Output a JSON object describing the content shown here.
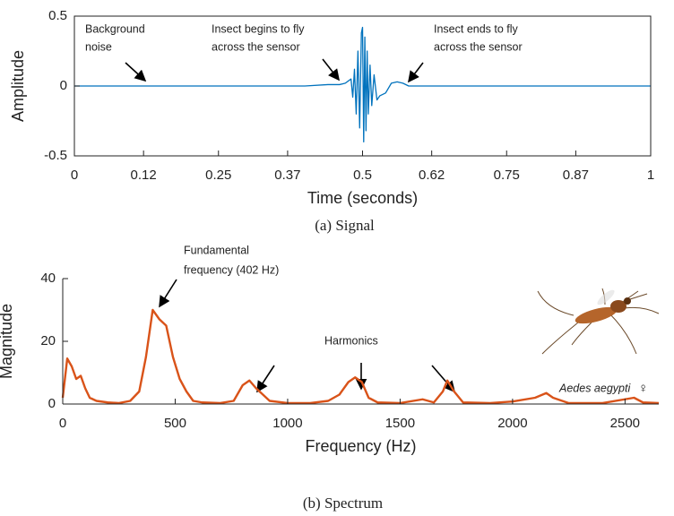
{
  "chart_data": [
    {
      "type": "line",
      "caption": "(a) Signal",
      "xlabel": "Time (seconds)",
      "ylabel": "Amplitude",
      "xlim": [
        0,
        1
      ],
      "xticks": [
        0,
        0.12,
        0.25,
        0.37,
        0.5,
        0.62,
        0.75,
        0.87,
        1
      ],
      "ylim": [
        -0.5,
        0.5
      ],
      "yticks": [
        -0.5,
        0,
        0.5
      ],
      "box": true,
      "series": [
        {
          "color": "#0072bd",
          "x": [
            0,
            0.4,
            0.44,
            0.46,
            0.47,
            0.48,
            0.483,
            0.486,
            0.489,
            0.492,
            0.495,
            0.498,
            0.5,
            0.502,
            0.504,
            0.506,
            0.508,
            0.51,
            0.513,
            0.516,
            0.52,
            0.525,
            0.53,
            0.54,
            0.55,
            0.56,
            0.57,
            0.58,
            0.6,
            1
          ],
          "values": [
            0,
            0,
            0.01,
            0.01,
            0.02,
            0.05,
            -0.08,
            0.12,
            -0.2,
            0.25,
            -0.3,
            0.38,
            0.42,
            -0.4,
            0.35,
            -0.32,
            0.25,
            -0.2,
            0.15,
            -0.14,
            0.08,
            -0.1,
            -0.07,
            -0.05,
            0.02,
            0.03,
            0.02,
            0,
            0,
            0
          ]
        }
      ],
      "annotations": [
        [
          "Background",
          "noise"
        ],
        [
          "Insect begins to fly",
          "across the sensor"
        ],
        [
          "Insect ends to fly",
          "across the sensor"
        ]
      ]
    },
    {
      "type": "line",
      "caption": "(b) Spectrum",
      "xlabel": "Frequency (Hz)",
      "ylabel": "Magnitude",
      "xlim": [
        0,
        2650
      ],
      "xticks": [
        0,
        500,
        1000,
        1500,
        2000,
        2500
      ],
      "ylim": [
        0,
        40
      ],
      "yticks": [
        0,
        20,
        40
      ],
      "box": false,
      "series": [
        {
          "color": "#d95319",
          "x": [
            0,
            20,
            40,
            60,
            80,
            100,
            120,
            150,
            200,
            250,
            300,
            340,
            370,
            400,
            430,
            460,
            490,
            520,
            550,
            580,
            620,
            700,
            760,
            800,
            830,
            860,
            890,
            920,
            1000,
            1100,
            1180,
            1230,
            1270,
            1300,
            1330,
            1360,
            1400,
            1500,
            1600,
            1650,
            1690,
            1710,
            1740,
            1780,
            1900,
            2000,
            2100,
            2150,
            2180,
            2250,
            2400,
            2540,
            2580,
            2650
          ],
          "values": [
            2,
            14.5,
            12,
            8,
            9,
            5,
            2,
            1,
            0.5,
            0.3,
            1,
            4,
            15,
            30,
            27,
            25,
            15,
            8,
            4,
            1,
            0.5,
            0.3,
            1,
            6,
            7.5,
            5,
            3,
            1,
            0.3,
            0.3,
            1,
            3,
            7,
            8.5,
            7,
            2,
            0.5,
            0.3,
            1.5,
            0.5,
            4,
            7.5,
            4,
            0.5,
            0.3,
            0.8,
            2,
            3.5,
            2,
            0.3,
            0.3,
            2,
            0.5,
            0.3
          ]
        }
      ],
      "annotations": [
        [
          "Fundamental",
          "frequency (402 Hz)"
        ],
        [
          "Harmonics"
        ]
      ],
      "species": "Aedes aegypti",
      "sex": "♀"
    }
  ]
}
